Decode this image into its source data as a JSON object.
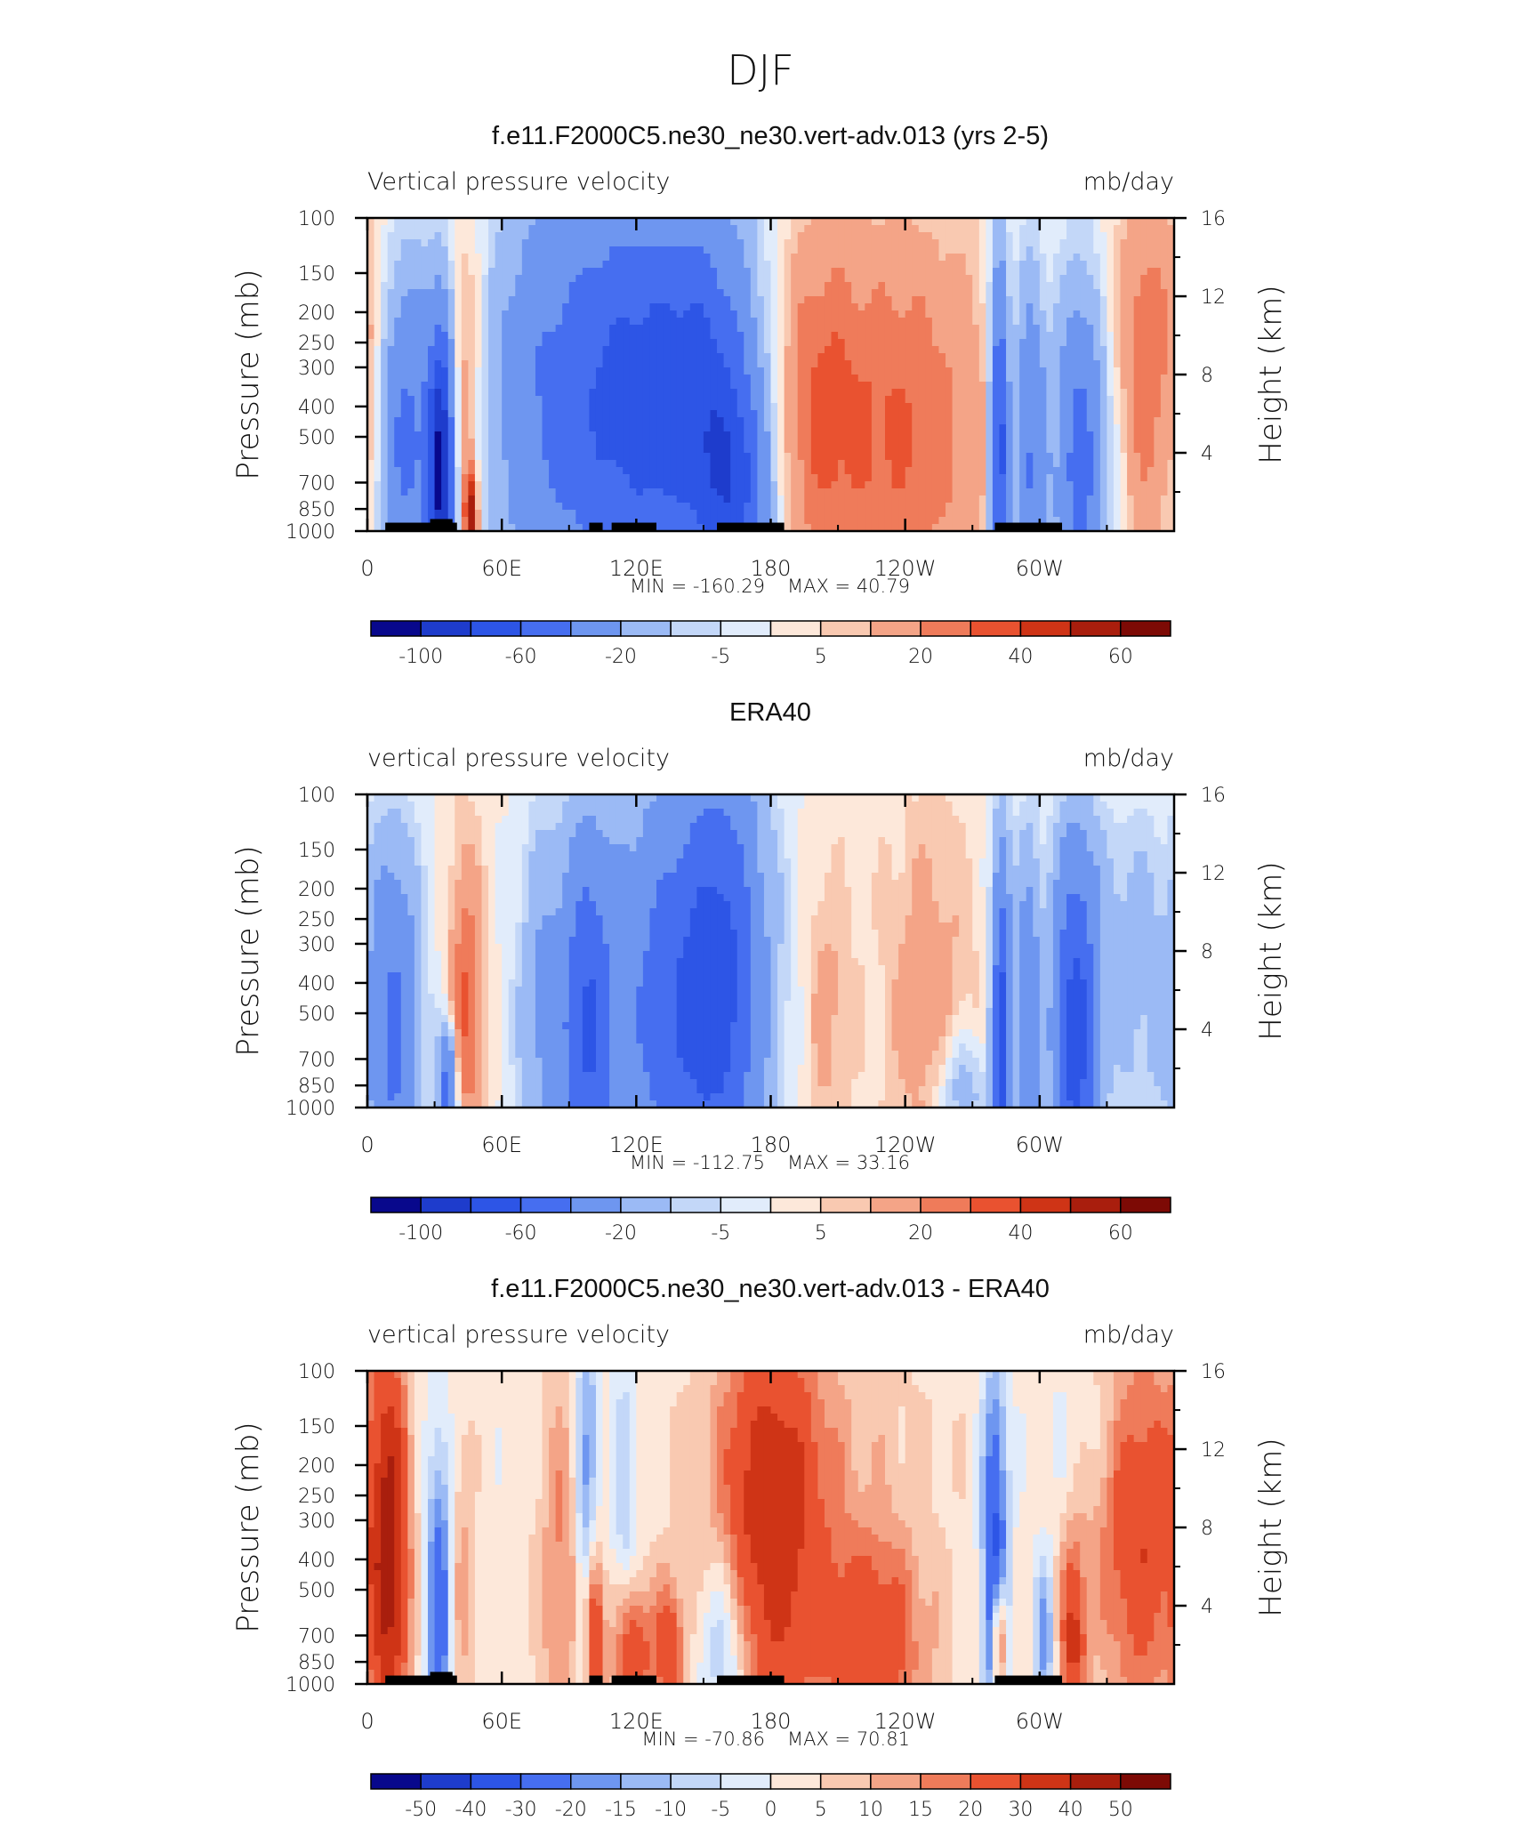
{
  "page_title": "DJF",
  "colors": {
    "field_palette": [
      "#08088c",
      "#1e3ccc",
      "#2d55e6",
      "#466ef0",
      "#6e96f0",
      "#9bbaf5",
      "#c3d7f8",
      "#e1ecfb",
      "#fde8da",
      "#f9c9b1",
      "#f4a487",
      "#ef7b5a",
      "#e95230",
      "#cf3416",
      "#a91e0d",
      "#7d0a05"
    ],
    "diff_palette": [
      "#08088c",
      "#1e3ccc",
      "#2d55e6",
      "#466ef0",
      "#6e96f0",
      "#9bbaf5",
      "#c3d7f8",
      "#e1ecfb",
      "#fde8da",
      "#f9c9b1",
      "#f4a487",
      "#ef7b5a",
      "#e95230",
      "#cf3416",
      "#a91e0d",
      "#7d0a05"
    ],
    "land": "#000000"
  },
  "chart_data": [
    {
      "type": "heatmap",
      "title": "f.e11.F2000C5.ne30_ne30.vert-adv.013 (yrs 2-5)",
      "left_label": "Vertical pressure velocity",
      "right_label": "mb/day",
      "ylabel": "Pressure (mb)",
      "y2label": "Height (km)",
      "x_ticks": [
        "0",
        "60E",
        "120E",
        "180",
        "120W",
        "60W"
      ],
      "y_ticks": [
        "100",
        "150",
        "200",
        "250",
        "300",
        "400",
        "500",
        "700",
        "850",
        "1000"
      ],
      "y2_ticks": [
        "16",
        "12",
        "8",
        "4"
      ],
      "min_label": "MIN = -160.29",
      "max_label": "MAX = 40.79",
      "colorbar_labels": [
        "-100",
        "-60",
        "-20",
        "-5",
        "5",
        "20",
        "40",
        "60"
      ],
      "colorbar_label_slots": [
        1,
        3,
        5,
        7,
        9,
        11,
        13,
        15
      ],
      "land_visible": true,
      "features": [
        {
          "lon": 18,
          "p": 520,
          "amp": -45,
          "wlon": 10,
          "wp": 0.9
        },
        {
          "lon": 33,
          "p": 680,
          "amp": -95,
          "wlon": 4,
          "wp": 0.8
        },
        {
          "lon": 43,
          "p": 400,
          "amp": 18,
          "wlon": 5,
          "wp": 0.9
        },
        {
          "lon": 46,
          "p": 890,
          "amp": 55,
          "wlon": 2,
          "wp": 0.25
        },
        {
          "lon": 2,
          "p": 320,
          "amp": 12,
          "wlon": 5,
          "wp": 0.9
        },
        {
          "lon": 75,
          "p": 400,
          "amp": -30,
          "wlon": 16,
          "wp": 1.2
        },
        {
          "lon": 112,
          "p": 380,
          "amp": -60,
          "wlon": 20,
          "wp": 1.1
        },
        {
          "lon": 150,
          "p": 400,
          "amp": -65,
          "wlon": 18,
          "wp": 1.0
        },
        {
          "lon": 165,
          "p": 760,
          "amp": -40,
          "wlon": 10,
          "wp": 0.5
        },
        {
          "lon": 235,
          "p": 480,
          "amp": 30,
          "wlon": 30,
          "wp": 1.0
        },
        {
          "lon": 200,
          "p": 380,
          "amp": 18,
          "wlon": 12,
          "wp": 0.9
        },
        {
          "lon": 282,
          "p": 550,
          "amp": -75,
          "wlon": 3,
          "wp": 1.0
        },
        {
          "lon": 296,
          "p": 600,
          "amp": -45,
          "wlon": 5,
          "wp": 1.0
        },
        {
          "lon": 318,
          "p": 600,
          "amp": -50,
          "wlon": 8,
          "wp": 1.0
        },
        {
          "lon": 348,
          "p": 320,
          "amp": 25,
          "wlon": 8,
          "wp": 0.9
        },
        {
          "lon": 330,
          "p": 170,
          "amp": 5,
          "wlon": 18,
          "wp": 0.5
        },
        {
          "lon": 140,
          "p": 900,
          "amp": 3,
          "wlon": 8,
          "wp": 0.2
        }
      ]
    },
    {
      "type": "heatmap",
      "title": "ERA40",
      "left_label": "vertical pressure velocity",
      "right_label": "mb/day",
      "ylabel": "Pressure (mb)",
      "y2label": "Height (km)",
      "x_ticks": [
        "0",
        "60E",
        "120E",
        "180",
        "120W",
        "60W"
      ],
      "y_ticks": [
        "100",
        "150",
        "200",
        "250",
        "300",
        "400",
        "500",
        "700",
        "850",
        "1000"
      ],
      "y2_ticks": [
        "16",
        "12",
        "8",
        "4"
      ],
      "min_label": "MIN = -112.75",
      "max_label": "MAX = 33.16",
      "colorbar_labels": [
        "-100",
        "-60",
        "-20",
        "-5",
        "5",
        "20",
        "40",
        "60"
      ],
      "colorbar_label_slots": [
        1,
        3,
        5,
        7,
        9,
        11,
        13,
        15
      ],
      "land_visible": false,
      "features": [
        {
          "lon": 12,
          "p": 600,
          "amp": -45,
          "wlon": 8,
          "wp": 1.0
        },
        {
          "lon": 36,
          "p": 860,
          "amp": -55,
          "wlon": 3,
          "wp": 0.3
        },
        {
          "lon": 44,
          "p": 480,
          "amp": 30,
          "wlon": 5,
          "wp": 0.8
        },
        {
          "lon": 78,
          "p": 500,
          "amp": -22,
          "wlon": 8,
          "wp": 1.0
        },
        {
          "lon": 98,
          "p": 560,
          "amp": -55,
          "wlon": 8,
          "wp": 1.0
        },
        {
          "lon": 140,
          "p": 480,
          "amp": -55,
          "wlon": 22,
          "wp": 1.2
        },
        {
          "lon": 160,
          "p": 350,
          "amp": -35,
          "wlon": 12,
          "wp": 1.2
        },
        {
          "lon": 205,
          "p": 500,
          "amp": 12,
          "wlon": 8,
          "wp": 0.8
        },
        {
          "lon": 250,
          "p": 450,
          "amp": 14,
          "wlon": 14,
          "wp": 1.0
        },
        {
          "lon": 283,
          "p": 620,
          "amp": -70,
          "wlon": 3,
          "wp": 1.0
        },
        {
          "lon": 295,
          "p": 600,
          "amp": -35,
          "wlon": 4,
          "wp": 1.0
        },
        {
          "lon": 316,
          "p": 620,
          "amp": -70,
          "wlon": 7,
          "wp": 1.0
        },
        {
          "lon": 265,
          "p": 880,
          "amp": -20,
          "wlon": 8,
          "wp": 0.3
        },
        {
          "lon": 345,
          "p": 500,
          "amp": -12,
          "wlon": 12,
          "wp": 1.0
        },
        {
          "lon": 330,
          "p": 220,
          "amp": -6,
          "wlon": 20,
          "wp": 0.5
        }
      ]
    },
    {
      "type": "heatmap",
      "title": "f.e11.F2000C5.ne30_ne30.vert-adv.013 - ERA40",
      "left_label": "vertical pressure velocity",
      "right_label": "mb/day",
      "ylabel": "Pressure (mb)",
      "y2label": "Height (km)",
      "x_ticks": [
        "0",
        "60E",
        "120E",
        "180",
        "120W",
        "60W"
      ],
      "y_ticks": [
        "100",
        "150",
        "200",
        "250",
        "300",
        "400",
        "500",
        "700",
        "850",
        "1000"
      ],
      "y2_ticks": [
        "16",
        "12",
        "8",
        "4"
      ],
      "min_label": "MIN = -70.86",
      "max_label": "MAX = 70.81",
      "colorbar_labels": [
        "-50",
        "-40",
        "-30",
        "-20",
        "-15",
        "-10",
        "-5",
        "0",
        "5",
        "10",
        "15",
        "20",
        "30",
        "40",
        "50"
      ],
      "colorbar_label_slots": [
        1,
        2,
        3,
        4,
        5,
        6,
        7,
        8,
        9,
        10,
        11,
        12,
        13,
        14,
        15
      ],
      "land_visible": true,
      "diff": true,
      "features": [
        {
          "lon": 10,
          "p": 380,
          "amp": 40,
          "wlon": 6,
          "wp": 1.1
        },
        {
          "lon": 32,
          "p": 600,
          "amp": -30,
          "wlon": 4,
          "wp": 0.9
        },
        {
          "lon": 42,
          "p": 500,
          "amp": 10,
          "wlon": 4,
          "wp": 0.9
        },
        {
          "lon": 88,
          "p": 450,
          "amp": 15,
          "wlon": 8,
          "wp": 1.0
        },
        {
          "lon": 98,
          "p": 320,
          "amp": -25,
          "wlon": 4,
          "wp": 1.2
        },
        {
          "lon": 101,
          "p": 700,
          "amp": 40,
          "wlon": 3,
          "wp": 0.5
        },
        {
          "lon": 118,
          "p": 800,
          "amp": 30,
          "wlon": 6,
          "wp": 0.4
        },
        {
          "lon": 135,
          "p": 800,
          "amp": 25,
          "wlon": 5,
          "wp": 0.4
        },
        {
          "lon": 115,
          "p": 300,
          "amp": -12,
          "wlon": 4,
          "wp": 1.0
        },
        {
          "lon": 160,
          "p": 750,
          "amp": -18,
          "wlon": 8,
          "wp": 0.5
        },
        {
          "lon": 180,
          "p": 330,
          "amp": 35,
          "wlon": 16,
          "wp": 1.0
        },
        {
          "lon": 225,
          "p": 720,
          "amp": 25,
          "wlon": 18,
          "wp": 0.6
        },
        {
          "lon": 200,
          "p": 150,
          "amp": 6,
          "wlon": 40,
          "wp": 0.6
        },
        {
          "lon": 280,
          "p": 380,
          "amp": -35,
          "wlon": 4,
          "wp": 1.0
        },
        {
          "lon": 282,
          "p": 720,
          "amp": 40,
          "wlon": 2,
          "wp": 0.3
        },
        {
          "lon": 302,
          "p": 720,
          "amp": -20,
          "wlon": 3,
          "wp": 0.4
        },
        {
          "lon": 315,
          "p": 720,
          "amp": 30,
          "wlon": 4,
          "wp": 0.5
        },
        {
          "lon": 345,
          "p": 300,
          "amp": 28,
          "wlon": 14,
          "wp": 1.0
        },
        {
          "lon": 330,
          "p": 150,
          "amp": -5,
          "wlon": 20,
          "wp": 0.4
        }
      ]
    }
  ]
}
